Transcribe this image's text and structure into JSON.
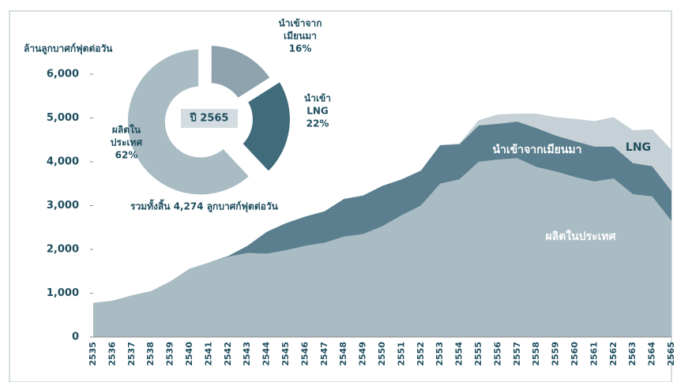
{
  "chart_data": [
    {
      "type": "stacked_area",
      "title": "ล้านลูกบาศก์ฟุตต่อวัน",
      "categories": [
        "2535",
        "2536",
        "2537",
        "2538",
        "2539",
        "2540",
        "2541",
        "2542",
        "2543",
        "2544",
        "2545",
        "2546",
        "2547",
        "2548",
        "2549",
        "2550",
        "2551",
        "2552",
        "2553",
        "2554",
        "2555",
        "2556",
        "2557",
        "2558",
        "2559",
        "2560",
        "2561",
        "2562",
        "2563",
        "2564",
        "2565"
      ],
      "series": [
        {
          "name": "ผลิตในประเทศ",
          "color": "#a9bcc4",
          "label_color": "#ffffff",
          "values": [
            780,
            830,
            950,
            1050,
            1270,
            1560,
            1700,
            1830,
            1920,
            1900,
            1980,
            2080,
            2150,
            2290,
            2350,
            2530,
            2780,
            3000,
            3500,
            3600,
            4000,
            4050,
            4080,
            3880,
            3780,
            3650,
            3550,
            3620,
            3260,
            3210,
            2650
          ]
        },
        {
          "name": "นำเข้าจากเมียนมา",
          "color": "#5b7f8e",
          "label_color": "#ffffff",
          "values": [
            0,
            0,
            0,
            0,
            0,
            0,
            0,
            20,
            160,
            500,
            620,
            670,
            720,
            860,
            880,
            920,
            820,
            800,
            880,
            800,
            830,
            820,
            840,
            890,
            820,
            820,
            800,
            730,
            710,
            690,
            684
          ]
        },
        {
          "name": "LNG",
          "color": "#c5d1d6",
          "label_color": "#1f4e5f",
          "values": [
            0,
            0,
            0,
            0,
            0,
            0,
            0,
            0,
            0,
            0,
            0,
            0,
            0,
            0,
            0,
            0,
            0,
            0,
            0,
            20,
            120,
            210,
            180,
            330,
            420,
            510,
            580,
            670,
            750,
            840,
            940
          ]
        }
      ],
      "ylim": [
        0,
        6000
      ],
      "yticks": [
        0,
        {
          "value": 1000,
          "label": "1,000"
        },
        {
          "value": 2000,
          "label": "2,000"
        },
        {
          "value": 3000,
          "label": "3,000"
        },
        {
          "value": 4000,
          "label": "4,000"
        },
        {
          "value": 5000,
          "label": "5,000"
        },
        {
          "value": 6000,
          "label": "6,000"
        }
      ]
    },
    {
      "type": "donut",
      "center_label": "ปี 2565",
      "categories": [
        [
          "นำเข้าจาก",
          "เมียนมา"
        ],
        [
          "นำเข้า",
          "LNG"
        ],
        [
          "ผลิตใน",
          "ประเทศ"
        ]
      ],
      "values": [
        16,
        22,
        62
      ],
      "value_labels": [
        "16%",
        "22%",
        "62%"
      ],
      "colors": [
        "#8ea3ad",
        "#3f6b7a",
        "#a9bcc4"
      ],
      "total_label": "รวมทั้งสิ้น  4,274  ลูกบาศก์ฟุตต่อวัน"
    }
  ]
}
